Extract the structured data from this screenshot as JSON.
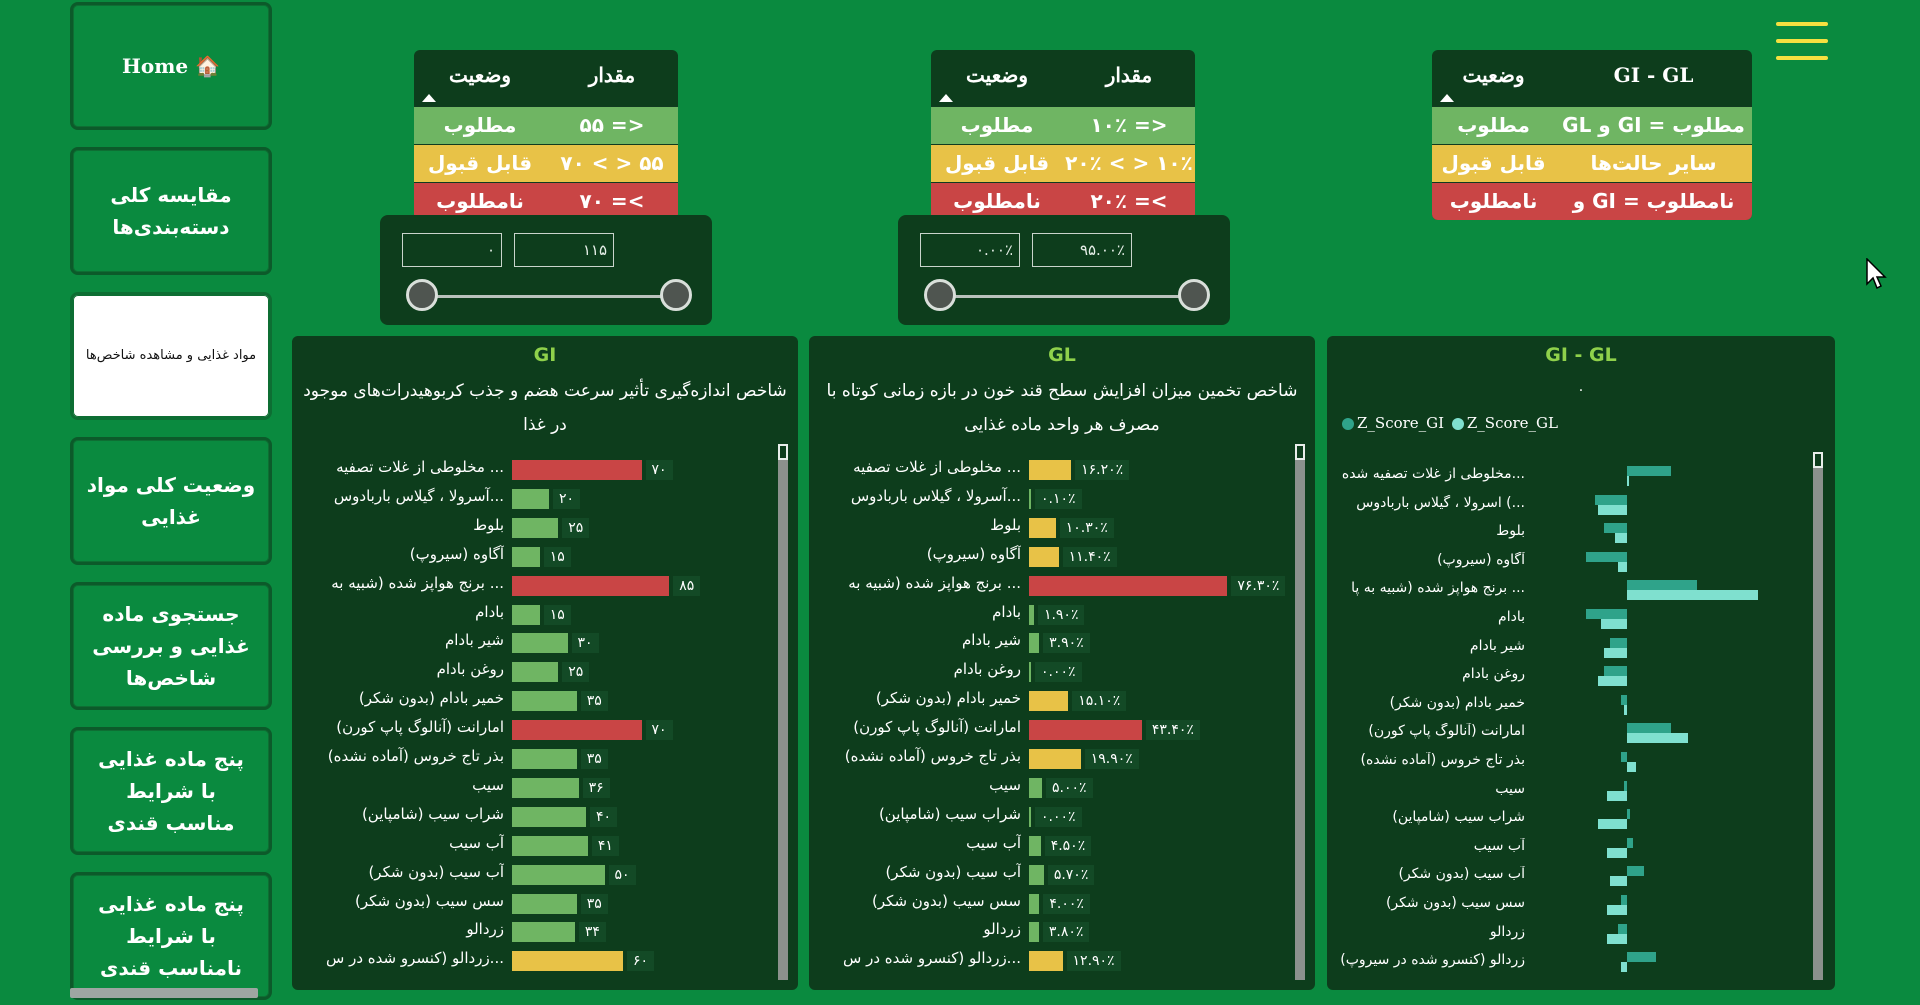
{
  "nav": {
    "home": "🏠 Home",
    "items": [
      "مقایسه کلی دسته‌بندی‌ها",
      "مواد غذایی و مشاهده شاخص‌ها",
      "وضعیت کلی مواد غذایی",
      "جستجوی ماده غذایی و بررسی شاخص‌ها",
      "پنج ماده غذایی با شرایط مناسب قندی",
      "پنج ماده غذایی با شرایط نامناسب قندی"
    ]
  },
  "legend_gi": {
    "col_value": "مقدار",
    "col_status": "وضعیت",
    "rows": [
      {
        "value": "<= ۵۵",
        "status": "مطلوب"
      },
      {
        "value": "۵۵ < > ۷۰",
        "status": "قابل قبول"
      },
      {
        "value": ">= ۷۰",
        "status": "نامطلوب"
      }
    ]
  },
  "legend_gl": {
    "col_value": "مقدار",
    "col_status": "وضعیت",
    "rows": [
      {
        "value": "<= ۱۰٪",
        "status": "مطلوب"
      },
      {
        "value": "۱۰٪ < > ۲۰٪",
        "status": "قابل قبول"
      },
      {
        "value": ">= ۲۰٪",
        "status": "نامطلوب"
      }
    ]
  },
  "legend_gigl": {
    "col_value": "GI - GL",
    "col_status": "وضعیت",
    "rows": [
      {
        "value": "مطلوب = GI و GL",
        "status": "مطلوب"
      },
      {
        "value": "سایر حالت‌ها",
        "status": "قابل قبول"
      },
      {
        "value": "نامطلوب = GI و GL",
        "status": "نامطلوب"
      }
    ]
  },
  "slicer_gi": {
    "min": "۰",
    "max": "۱۱۵"
  },
  "slicer_gl": {
    "min": "۰.۰۰٪",
    "max": "۹۵.۰۰٪"
  },
  "colors": {
    "green": "#6fb563",
    "yellow": "#e8c247",
    "red": "#c94545",
    "z_gi": "#2fa38a",
    "z_gl": "#7fe0cf"
  },
  "foods": [
    "... مخلوطی از غلات تصفیه",
    "...آسرولا ، گیلاس باربادوس",
    "بلوط",
    "آگاوه (سیروپ)",
    "... برنج هواپز شده (شبیه به",
    "بادام",
    "شیر بادام",
    "روغن بادام",
    "خمیر بادام (بدون شکر)",
    "امارانت (آنالوگ پاپ کورن)",
    "بذر تاج خروس (آماده نشده)",
    "سیب",
    "شراب سیب (شامپاین)",
    "آب سیب",
    "آب سیب (بدون شکر)",
    "سس سیب (بدون شکر)",
    "زردالو",
    "...زردالو (کنسرو شده در س"
  ],
  "z_foods": [
    "...مخلوطی از غلات تصفیه شده",
    "...) اسرولا ، گیلاس باربادوس",
    "بلوط",
    "آگاوه (سیروپ)",
    "... برنج هواپز شده (شبیه به پا",
    "بادام",
    "شیر بادام",
    "روغن بادام",
    "خمیر بادام (بدون شکر)",
    "امارانت (آنالوگ پاپ کورن)",
    "بذر تاج خروس (آماده نشده)",
    "سیب",
    "شراب سیب (شامپاین)",
    "آب سیب",
    "آب سیب (بدون شکر)",
    "سس سیب (بدون شکر)",
    "زردالو",
    "زردالو (کنسرو شده در سیروپ)"
  ],
  "gi_panel": {
    "title": "GI",
    "subtitle": "شاخص اندازه‌گیری تأثیر سرعت هضم و جذب کربوهیدرات‌های موجود در غذا",
    "values": [
      70,
      20,
      25,
      15,
      85,
      15,
      30,
      25,
      35,
      70,
      35,
      36,
      40,
      41,
      50,
      35,
      34,
      60
    ],
    "labels": [
      "۷۰",
      "۲۰",
      "۲۵",
      "۱۵",
      "۸۵",
      "۱۵",
      "۳۰",
      "۲۵",
      "۳۵",
      "۷۰",
      "۳۵",
      "۳۶",
      "۴۰",
      "۴۱",
      "۵۰",
      "۳۵",
      "۳۴",
      "۶۰"
    ]
  },
  "gl_panel": {
    "title": "GL",
    "subtitle": "شاخص تخمین میزان افزایش سطح قند خون در بازه زمانی کوتاه با مصرف هر واحد ماده غذایی",
    "values": [
      16.2,
      0.1,
      10.3,
      11.4,
      76.3,
      1.9,
      3.9,
      0,
      15.1,
      43.4,
      19.9,
      5,
      0,
      4.5,
      5.7,
      4,
      3.8,
      12.9
    ],
    "labels": [
      "۱۶.۲۰٪",
      "۰.۱۰٪",
      "۱۰.۳۰٪",
      "۱۱.۴۰٪",
      "۷۶.۳۰٪",
      "۱.۹۰٪",
      "۳.۹۰٪",
      "۰.۰۰٪",
      "۱۵.۱۰٪",
      "۴۳.۴۰٪",
      "۱۹.۹۰٪",
      "۵.۰۰٪",
      "۰.۰۰٪",
      "۴.۵۰٪",
      "۵.۷۰٪",
      "۴.۰۰٪",
      "۳.۸۰٪",
      "۱۲.۹۰٪"
    ]
  },
  "chart_data": {
    "type": "bar",
    "title": "GI - GL",
    "subtitle": ".",
    "series": [
      {
        "name": "Z_Score_GI",
        "values": [
          1.5,
          -1.1,
          -0.8,
          -1.4,
          2.4,
          -1.4,
          -0.6,
          -0.8,
          -0.2,
          1.5,
          -0.2,
          -0.1,
          0.1,
          0.2,
          0.6,
          -0.2,
          -0.3,
          1.0
        ]
      },
      {
        "name": "Z_Score_GL",
        "values": [
          0.0,
          -1.0,
          -0.4,
          -0.3,
          4.5,
          -0.9,
          -0.8,
          -1.0,
          -0.1,
          2.1,
          0.3,
          -0.7,
          -1.0,
          -0.7,
          -0.6,
          -0.7,
          -0.7,
          -0.2
        ]
      }
    ]
  }
}
